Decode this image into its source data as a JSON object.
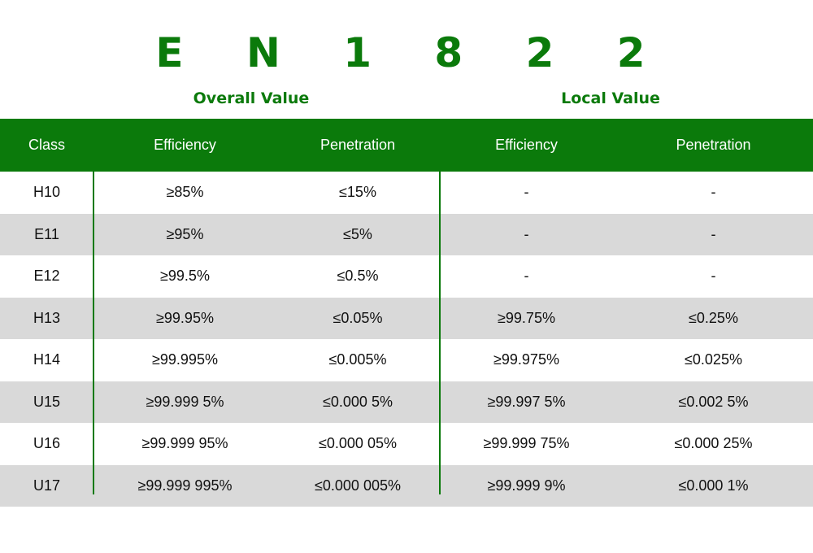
{
  "title": "E N 1 8 2 2",
  "groups": {
    "overall": "Overall Value",
    "local": "Local Value"
  },
  "headers": [
    "Class",
    "Efficiency",
    "Penetration",
    "Efficiency",
    "Penetration"
  ],
  "rows": [
    [
      "H10",
      "≥85%",
      "≤15%",
      "-",
      "-"
    ],
    [
      "E11",
      "≥95%",
      "≤5%",
      "-",
      "-"
    ],
    [
      "E12",
      "≥99.5%",
      "≤0.5%",
      "-",
      "-"
    ],
    [
      "H13",
      "≥99.95%",
      "≤0.05%",
      "≥99.75%",
      "≤0.25%"
    ],
    [
      "H14",
      "≥99.995%",
      "≤0.005%",
      "≥99.975%",
      "≤0.025%"
    ],
    [
      "U15",
      "≥99.999 5%",
      "≤0.000 5%",
      "≥99.997 5%",
      "≤0.002 5%"
    ],
    [
      "U16",
      "≥99.999 95%",
      "≤0.000 05%",
      "≥99.999 75%",
      "≤0.000 25%"
    ],
    [
      "U17",
      "≥99.999 995%",
      "≤0.000 005%",
      "≥99.999 9%",
      "≤0.000 1%"
    ]
  ],
  "colors": {
    "brand_green": "#0b7a0b",
    "row_alt": "#d9d9d9",
    "header_text": "#ffffff"
  }
}
